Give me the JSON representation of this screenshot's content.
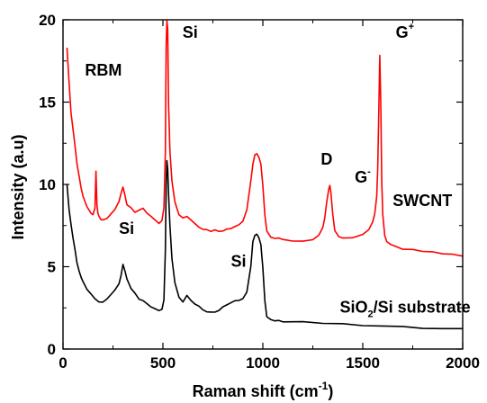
{
  "chart_data": {
    "type": "line",
    "xlabel_main": "Raman shift (cm",
    "xlabel_sup": "-1",
    "xlabel_end": ")",
    "ylabel": "Intensity (a.u)",
    "xlim": [
      0,
      2000
    ],
    "ylim": [
      0,
      20
    ],
    "xticks": [
      0,
      500,
      1000,
      1500,
      2000
    ],
    "yticks": [
      0,
      5,
      10,
      15,
      20
    ],
    "grid": false,
    "colors": {
      "swcnt": "#ff0000",
      "substrate": "#000000"
    },
    "series": [
      {
        "name": "SWCNT",
        "x": [
          20,
          30,
          40,
          50,
          60,
          70,
          80,
          90,
          100,
          110,
          120,
          130,
          140,
          150,
          160,
          165,
          170,
          175,
          180,
          190,
          200,
          220,
          240,
          260,
          280,
          290,
          300,
          310,
          320,
          340,
          360,
          380,
          400,
          420,
          440,
          460,
          480,
          495,
          505,
          512,
          516,
          520,
          524,
          528,
          535,
          545,
          560,
          580,
          600,
          620,
          640,
          660,
          680,
          700,
          720,
          740,
          760,
          780,
          800,
          820,
          840,
          860,
          880,
          900,
          920,
          940,
          950,
          960,
          970,
          980,
          990,
          1000,
          1010,
          1020,
          1040,
          1060,
          1080,
          1100,
          1150,
          1200,
          1250,
          1280,
          1300,
          1310,
          1320,
          1330,
          1335,
          1340,
          1350,
          1360,
          1380,
          1400,
          1450,
          1500,
          1530,
          1550,
          1560,
          1570,
          1575,
          1580,
          1585,
          1590,
          1595,
          1600,
          1610,
          1620,
          1640,
          1660,
          1700,
          1750,
          1800,
          1850,
          1900,
          1950,
          2000
        ],
        "y": [
          18.3,
          16.2,
          14.3,
          13.3,
          12.3,
          11.2,
          10.5,
          9.8,
          9.3,
          9.0,
          8.7,
          8.5,
          8.3,
          8.2,
          8.6,
          10.8,
          8.7,
          8.2,
          8.0,
          7.8,
          7.8,
          7.9,
          8.2,
          8.5,
          9.0,
          9.5,
          9.9,
          9.4,
          8.8,
          8.6,
          8.3,
          8.4,
          8.5,
          8.2,
          8.0,
          7.8,
          7.6,
          7.8,
          8.6,
          12.0,
          18.5,
          20.0,
          19.5,
          15.0,
          12.0,
          10.2,
          8.9,
          8.1,
          7.9,
          8.0,
          7.8,
          7.6,
          7.4,
          7.3,
          7.3,
          7.2,
          7.3,
          7.2,
          7.2,
          7.3,
          7.3,
          7.4,
          7.5,
          7.7,
          8.4,
          10.2,
          11.2,
          11.8,
          11.9,
          11.7,
          11.3,
          10.0,
          8.2,
          7.2,
          6.8,
          6.7,
          6.7,
          6.6,
          6.5,
          6.5,
          6.6,
          6.9,
          7.4,
          8.0,
          9.0,
          9.8,
          10.0,
          9.6,
          8.2,
          7.2,
          6.8,
          6.7,
          6.7,
          6.9,
          7.2,
          7.7,
          8.2,
          9.3,
          11.0,
          14.5,
          17.9,
          15.0,
          10.2,
          8.2,
          6.9,
          6.5,
          6.3,
          6.2,
          6.0,
          6.0,
          5.9,
          5.9,
          5.8,
          5.8,
          5.7
        ]
      },
      {
        "name": "SiO2/Si substrate",
        "x": [
          20,
          30,
          40,
          50,
          60,
          70,
          80,
          90,
          100,
          120,
          140,
          160,
          180,
          200,
          220,
          240,
          260,
          280,
          290,
          300,
          310,
          320,
          340,
          360,
          380,
          400,
          420,
          440,
          460,
          480,
          495,
          505,
          512,
          516,
          520,
          524,
          528,
          535,
          545,
          560,
          580,
          600,
          620,
          640,
          660,
          680,
          700,
          720,
          740,
          760,
          780,
          800,
          820,
          840,
          860,
          880,
          900,
          920,
          940,
          950,
          960,
          970,
          980,
          990,
          1000,
          1010,
          1020,
          1040,
          1060,
          1080,
          1100,
          1200,
          1300,
          1400,
          1500,
          1600,
          1700,
          1800,
          1900,
          2000
        ],
        "y": [
          10.0,
          8.5,
          7.6,
          6.8,
          6.1,
          5.3,
          4.8,
          4.4,
          4.1,
          3.6,
          3.3,
          3.0,
          2.8,
          2.8,
          3.0,
          3.3,
          3.6,
          4.0,
          4.5,
          5.2,
          4.8,
          4.3,
          3.7,
          3.4,
          3.0,
          2.9,
          2.7,
          2.5,
          2.4,
          2.3,
          2.4,
          3.0,
          6.0,
          10.0,
          11.5,
          11.0,
          9.5,
          7.5,
          5.5,
          4.0,
          3.1,
          2.8,
          3.2,
          2.9,
          2.7,
          2.6,
          2.4,
          2.3,
          2.3,
          2.3,
          2.4,
          2.6,
          2.7,
          2.8,
          2.9,
          2.9,
          3.0,
          3.4,
          5.0,
          6.5,
          6.9,
          7.0,
          6.8,
          6.4,
          5.0,
          3.0,
          2.0,
          1.8,
          1.7,
          1.7,
          1.6,
          1.6,
          1.5,
          1.5,
          1.4,
          1.4,
          1.4,
          1.3,
          1.3,
          1.3
        ]
      }
    ],
    "annotations": [
      {
        "text": "RBM",
        "x": 110,
        "y": 16.6
      },
      {
        "text": "Si",
        "x": 598,
        "y": 18.9
      },
      {
        "text": "G",
        "sup": "+",
        "x": 1665,
        "y": 18.9
      },
      {
        "text": "D",
        "x": 1290,
        "y": 11.2
      },
      {
        "text": "G",
        "sup": "-",
        "x": 1460,
        "y": 10.1
      },
      {
        "text": "SWCNT",
        "x": 1650,
        "y": 8.7
      },
      {
        "text": "Si",
        "x": 280,
        "y": 7.0
      },
      {
        "text": "Si",
        "x": 840,
        "y": 5.0
      },
      {
        "text": "SiO",
        "sub": "2",
        "rest": "/Si substrate",
        "x": 1385,
        "y": 2.2
      }
    ]
  }
}
